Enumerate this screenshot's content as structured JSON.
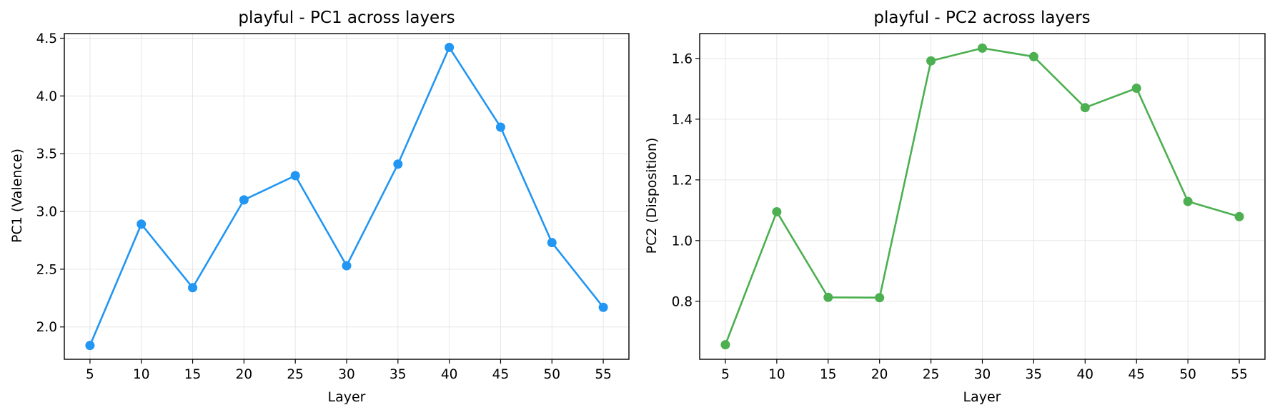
{
  "chart_data": [
    {
      "type": "line",
      "title": "playful - PC1 across layers",
      "xlabel": "Layer",
      "ylabel": "PC1 (Valence)",
      "x": [
        5,
        10,
        15,
        20,
        25,
        30,
        35,
        40,
        45,
        50,
        55
      ],
      "series": [
        {
          "values": [
            1.84,
            2.89,
            2.34,
            3.1,
            3.31,
            2.53,
            3.41,
            4.42,
            3.73,
            2.73,
            2.17
          ]
        }
      ],
      "xticks": [
        5,
        10,
        15,
        20,
        25,
        30,
        35,
        40,
        45,
        50,
        55
      ],
      "yticks": [
        2.0,
        2.5,
        3.0,
        3.5,
        4.0,
        4.5
      ],
      "ytick_labels": [
        "2.0",
        "2.5",
        "3.0",
        "3.5",
        "4.0",
        "4.5"
      ],
      "xlim": [
        2.5,
        57.5
      ],
      "ylim": [
        1.72,
        4.54
      ],
      "color": "#2196F3",
      "grid": true
    },
    {
      "type": "line",
      "title": "playful - PC2 across layers",
      "xlabel": "Layer",
      "ylabel": "PC2 (Disposition)",
      "x": [
        5,
        10,
        15,
        20,
        25,
        30,
        35,
        40,
        45,
        50,
        55
      ],
      "series": [
        {
          "values": [
            0.657,
            1.095,
            0.813,
            0.812,
            1.592,
            1.634,
            1.606,
            1.438,
            1.502,
            1.129,
            1.079
          ]
        }
      ],
      "xticks": [
        5,
        10,
        15,
        20,
        25,
        30,
        35,
        40,
        45,
        50,
        55
      ],
      "yticks": [
        0.8,
        1.0,
        1.2,
        1.4,
        1.6
      ],
      "ytick_labels": [
        "0.8",
        "1.0",
        "1.2",
        "1.4",
        "1.6"
      ],
      "xlim": [
        2.5,
        57.5
      ],
      "ylim": [
        0.609,
        1.682
      ],
      "color": "#4CAF50",
      "grid": true
    }
  ]
}
